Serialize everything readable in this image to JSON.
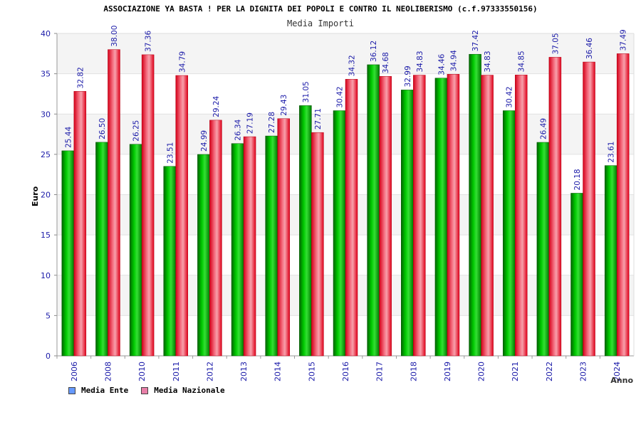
{
  "chart_data": {
    "type": "bar",
    "title": "ASSOCIAZIONE YA BASTA ! PER LA DIGNITA DEI POPOLI E CONTRO IL NEOLIBERISMO (c.f.97333550156)",
    "subtitle": "Media Importi",
    "xlabel": "Anno",
    "ylabel": "Euro",
    "ylim": [
      0,
      40
    ],
    "yticks": [
      0,
      5,
      10,
      15,
      20,
      25,
      30,
      35,
      40
    ],
    "grid": true,
    "legend_position": "bottom-left",
    "categories": [
      "2006",
      "2008",
      "2010",
      "2011",
      "2012",
      "2013",
      "2014",
      "2015",
      "2016",
      "2017",
      "2018",
      "2019",
      "2020",
      "2021",
      "2022",
      "2023",
      "2024"
    ],
    "series": [
      {
        "name": "Media Ente",
        "color": "#00b000",
        "legend_color": "#6699ff",
        "values": [
          25.44,
          26.5,
          26.25,
          23.51,
          24.99,
          26.34,
          27.28,
          31.05,
          30.42,
          36.12,
          32.99,
          34.46,
          37.42,
          30.42,
          26.49,
          20.18,
          23.61
        ],
        "labels": [
          "25.44",
          "26.50",
          "26.25",
          "23.51",
          "24.99",
          "26.34",
          "27.28",
          "31.05",
          "30.42",
          "36.12",
          "32.99",
          "34.46",
          "37.42",
          "30.42",
          "26.49",
          "20.18",
          "23.61"
        ]
      },
      {
        "name": "Media Nazionale",
        "color": "#e8001c",
        "legend_color": "#e87fa8",
        "values": [
          32.82,
          38.0,
          37.36,
          34.79,
          29.24,
          27.19,
          29.43,
          27.71,
          34.32,
          34.68,
          34.83,
          34.94,
          34.83,
          34.85,
          37.05,
          36.46,
          37.49
        ],
        "labels": [
          "32.82",
          "38.00",
          "37.36",
          "34.79",
          "29.24",
          "27.19",
          "29.43",
          "27.71",
          "34.32",
          "34.68",
          "34.83",
          "34.94",
          "34.83",
          "34.85",
          "37.05",
          "36.46",
          "37.49"
        ]
      }
    ]
  }
}
